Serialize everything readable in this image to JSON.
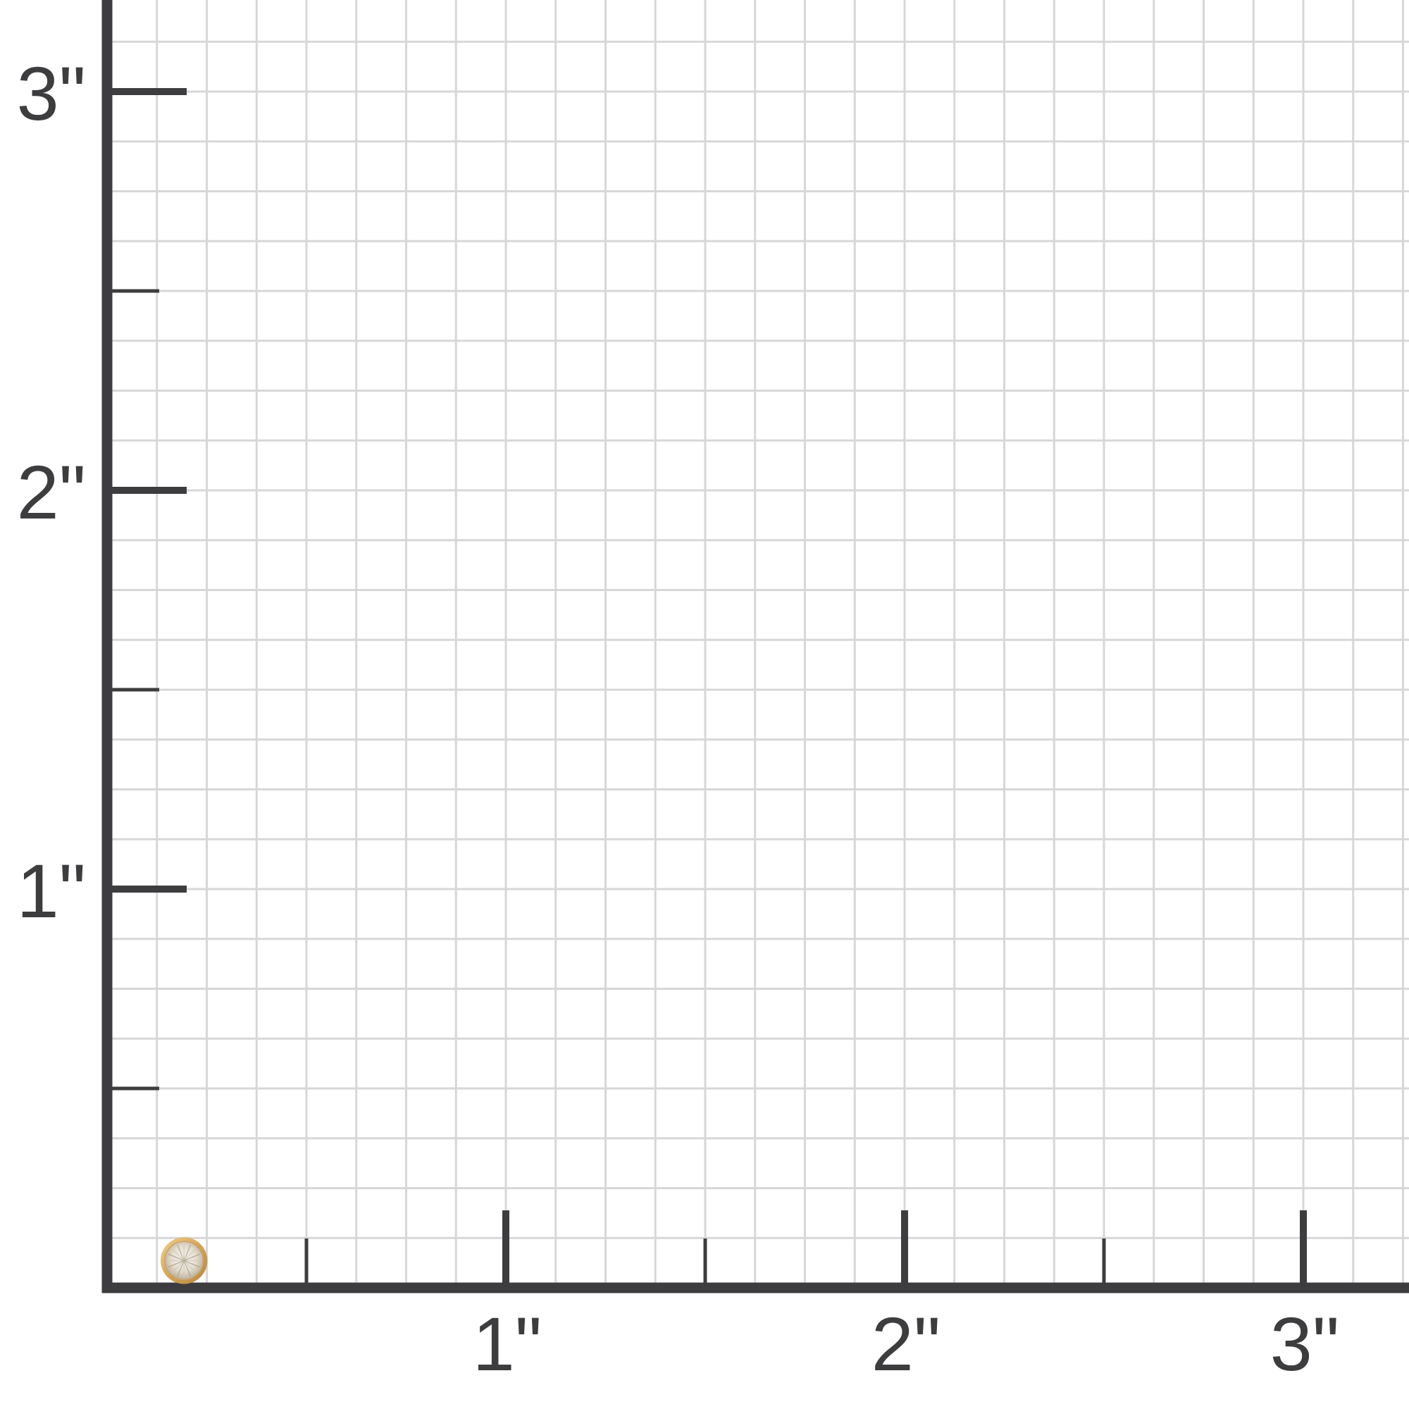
{
  "scale": {
    "unit": "inch",
    "x_ticks": [
      {
        "value": 1,
        "label": "1\""
      },
      {
        "value": 2,
        "label": "2\""
      },
      {
        "value": 3,
        "label": "3\""
      }
    ],
    "y_ticks": [
      {
        "value": 1,
        "label": "1\""
      },
      {
        "value": 2,
        "label": "2\""
      },
      {
        "value": 3,
        "label": "3\""
      }
    ],
    "minor_tick_values": [
      0.5,
      1.5,
      2.5
    ],
    "grid_step_inches": 0.125
  },
  "product": {
    "icon": "bezel-diamond-stud-icon",
    "position_inches": [
      0.2,
      0.07
    ],
    "diameter_inches": 0.11
  },
  "colors": {
    "axis": "#3d3d3f",
    "grid": "#d7d7d9",
    "gold": "#d9a95a",
    "diamond": "#ece7dc"
  }
}
